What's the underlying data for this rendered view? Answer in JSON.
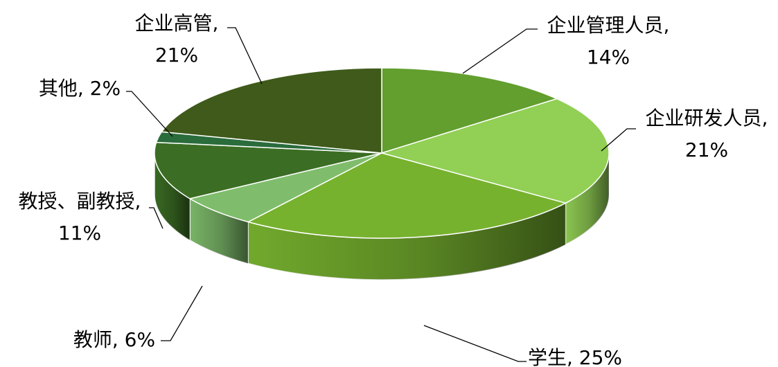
{
  "chart_data": {
    "type": "pie",
    "style": "3d",
    "title": "",
    "slices": [
      {
        "name": "企业管理人员",
        "value": 14,
        "color": "#629f2e",
        "label_lines": [
          "企业管理人员,",
          "14%"
        ]
      },
      {
        "name": "企业研发人员",
        "value": 21,
        "color": "#92cf55",
        "label_lines": [
          "企业研发人员,",
          "21%"
        ]
      },
      {
        "name": "学生",
        "value": 25,
        "color": "#77b22f",
        "label_lines": [
          "学生, 25%"
        ]
      },
      {
        "name": "教师",
        "value": 6,
        "color": "#7fbd6c",
        "label_lines": [
          "教师, 6%"
        ]
      },
      {
        "name": "教授、副教授",
        "value": 11,
        "color": "#3b6e24",
        "label_lines": [
          "教授、副教授,",
          "11%"
        ]
      },
      {
        "name": "其他",
        "value": 2,
        "color": "#2a6c3c",
        "label_lines": [
          "其他, 2%"
        ]
      },
      {
        "name": "企业高管",
        "value": 21,
        "color": "#3f5a1a",
        "label_lines": [
          "企业高管,",
          "21%"
        ]
      }
    ]
  }
}
